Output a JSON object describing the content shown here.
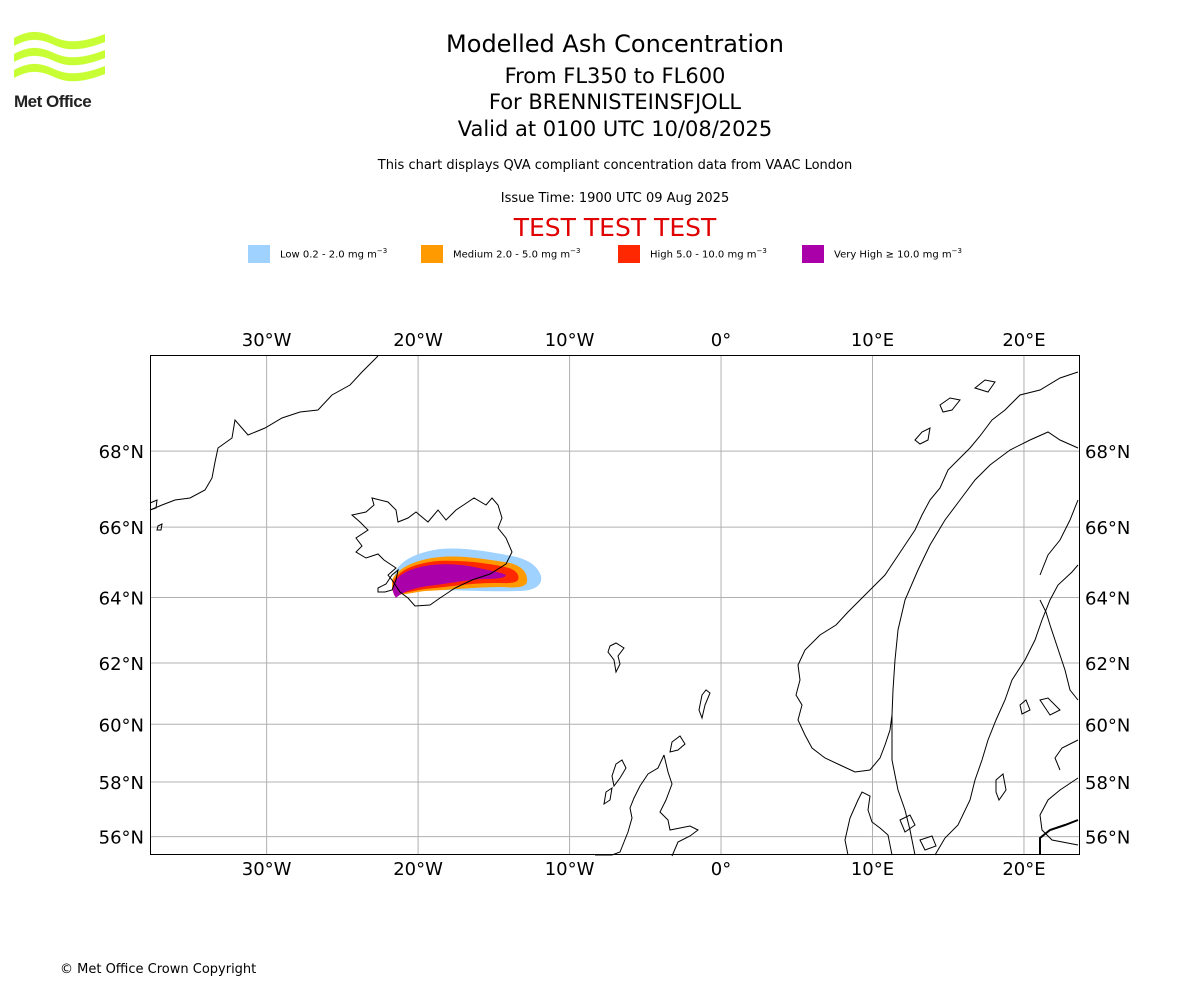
{
  "header": {
    "title": "Modelled Ash Concentration",
    "levels": "From FL350 to FL600",
    "volcano": "For BRENNISTEINSFJOLL",
    "valid": "Valid at 0100 UTC 10/08/2025",
    "description": "This chart displays QVA compliant concentration data from VAAC London",
    "issue_time": "Issue Time: 1900 UTC 09 Aug 2025",
    "test_banner": "TEST TEST TEST"
  },
  "logo": {
    "text": "Met Office",
    "color": "#c8ff34"
  },
  "legend": [
    {
      "label": "Low 0.2 - 2.0 mg m",
      "unit_sup": "−3",
      "color": "#a0d2ff"
    },
    {
      "label": "Medium 2.0 - 5.0 mg m",
      "unit_sup": "−3",
      "color": "#ff9a00"
    },
    {
      "label": "High 5.0 - 10.0 mg m",
      "unit_sup": "−3",
      "color": "#ff2800"
    },
    {
      "label": "Very High  ≥  10.0 mg m",
      "unit_sup": "−3",
      "color": "#aa00aa"
    }
  ],
  "map": {
    "lon_range": [
      -37.7,
      23.7
    ],
    "lat_range": [
      55.3,
      70.3
    ],
    "lon_ticks": [
      {
        "value": -30,
        "label": "30°W"
      },
      {
        "value": -20,
        "label": "20°W"
      },
      {
        "value": -10,
        "label": "10°W"
      },
      {
        "value": 0,
        "label": "0°"
      },
      {
        "value": 10,
        "label": "10°E"
      },
      {
        "value": 20,
        "label": "20°E"
      }
    ],
    "lat_ticks": [
      {
        "value": 68,
        "label": "68°N"
      },
      {
        "value": 66,
        "label": "66°N"
      },
      {
        "value": 64,
        "label": "64°N"
      },
      {
        "value": 62,
        "label": "62°N"
      },
      {
        "value": 60,
        "label": "60°N"
      },
      {
        "value": 58,
        "label": "58°N"
      },
      {
        "value": 56,
        "label": "56°N"
      }
    ]
  },
  "footer": {
    "copyright": "© Met Office Crown Copyright"
  }
}
